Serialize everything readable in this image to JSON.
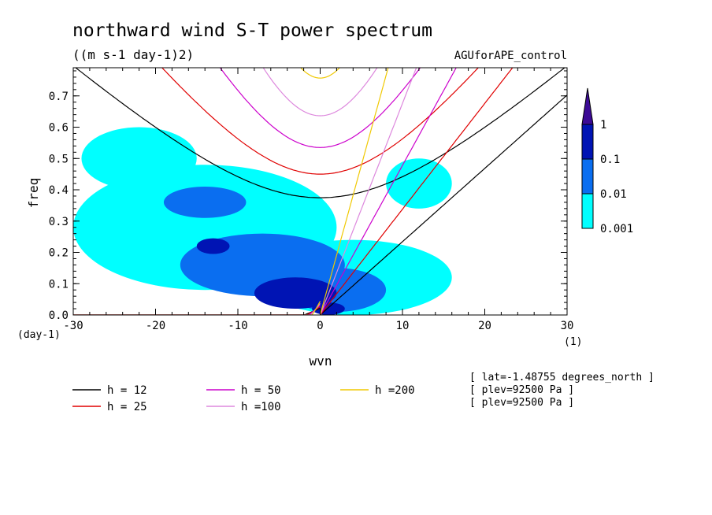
{
  "chart_data": {
    "type": "heatmap",
    "title": "northward wind S-T power spectrum",
    "units": "((m s-1 day-1)2)",
    "dataset": "AGUforAPE_control",
    "xlabel": "wvn",
    "ylabel": "freq",
    "x_unit": "(1)",
    "y_unit": "(day-1)",
    "xlim": [
      -30,
      30
    ],
    "ylim": [
      0,
      0.79
    ],
    "x_ticks": [
      -30,
      -20,
      -10,
      0,
      10,
      20,
      30
    ],
    "x_tick_labels": [
      "-30",
      "-20",
      "-10",
      "0",
      "10",
      "20",
      "30"
    ],
    "y_ticks": [
      0,
      0.1,
      0.2,
      0.3,
      0.4,
      0.5,
      0.6,
      0.7
    ],
    "y_tick_labels": [
      "0.0",
      "0.1",
      "0.2",
      "0.3",
      "0.4",
      "0.5",
      "0.6",
      "0.7"
    ],
    "colorbar": {
      "levels": [
        0.001,
        0.01,
        0.1,
        1
      ],
      "labels": [
        "0.001",
        "0.01",
        "0.1",
        "1"
      ],
      "colors": [
        "#00ffff",
        "#0a6ef0",
        "#0014b4",
        "#3c0a96"
      ]
    },
    "power_regions": [
      {
        "level": 0.001,
        "shape": "ellipse",
        "cx": -14,
        "cy": 0.28,
        "rx": 16,
        "ry": 0.2
      },
      {
        "level": 0.001,
        "shape": "ellipse",
        "cx": -22,
        "cy": 0.5,
        "rx": 7,
        "ry": 0.1
      },
      {
        "level": 0.001,
        "shape": "ellipse",
        "cx": 4,
        "cy": 0.12,
        "rx": 12,
        "ry": 0.12
      },
      {
        "level": 0.001,
        "shape": "ellipse",
        "cx": 12,
        "cy": 0.42,
        "rx": 4,
        "ry": 0.08
      },
      {
        "level": 0.01,
        "shape": "ellipse",
        "cx": -7,
        "cy": 0.16,
        "rx": 10,
        "ry": 0.1
      },
      {
        "level": 0.01,
        "shape": "ellipse",
        "cx": -14,
        "cy": 0.36,
        "rx": 5,
        "ry": 0.05
      },
      {
        "level": 0.01,
        "shape": "ellipse",
        "cx": 2,
        "cy": 0.08,
        "rx": 6,
        "ry": 0.07
      },
      {
        "level": 0.1,
        "shape": "ellipse",
        "cx": -3,
        "cy": 0.07,
        "rx": 5,
        "ry": 0.05
      },
      {
        "level": 0.1,
        "shape": "ellipse",
        "cx": -13,
        "cy": 0.22,
        "rx": 2,
        "ry": 0.025
      },
      {
        "level": 0.1,
        "shape": "ellipse",
        "cx": 1,
        "cy": 0.02,
        "rx": 2,
        "ry": 0.02
      }
    ],
    "dispersion_curves": {
      "equivalent_depths": [
        12,
        25,
        50,
        100,
        200
      ],
      "colors": [
        "#000000",
        "#e00000",
        "#cc00cc",
        "#dd88dd",
        "#f0c800"
      ]
    },
    "legend": [
      {
        "label": "h = 12",
        "color": "#000000"
      },
      {
        "label": "h = 25",
        "color": "#e00000"
      },
      {
        "label": "h = 50",
        "color": "#cc00cc"
      },
      {
        "label": "h =100",
        "color": "#dd88dd"
      },
      {
        "label": "h =200",
        "color": "#f0c800"
      }
    ],
    "annotations": [
      "[ lat=-1.48755 degrees_north ]",
      "[ plev=92500 Pa ]",
      "[ plev=92500 Pa ]"
    ]
  }
}
